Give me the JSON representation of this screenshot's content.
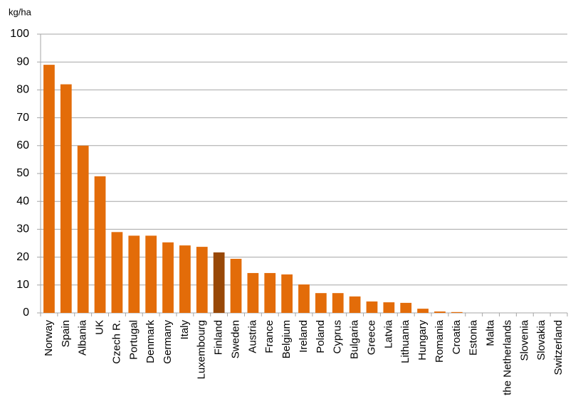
{
  "chart_data": {
    "type": "bar",
    "y_label": "kg/ha",
    "categories": [
      "Norway",
      "Spain",
      "Albania",
      "UK",
      "Czech R.",
      "Portugal",
      "Denmark",
      "Germany",
      "Italy",
      "Luxembourg",
      "Finland",
      "Sweden",
      "Austria",
      "France",
      "Belgium",
      "Ireland",
      "Poland",
      "Cyprus",
      "Bulgaria",
      "Greece",
      "Latvia",
      "Lithuania",
      "Hungary",
      "Romania",
      "Croatia",
      "Estonia",
      "Malta",
      "the Netherlands",
      "Slovenia",
      "Slovakia",
      "Switzerland"
    ],
    "values": [
      89,
      82,
      60,
      49,
      29,
      27.7,
      27.7,
      25.3,
      24.2,
      23.7,
      21.7,
      19.4,
      14.3,
      14.3,
      13.8,
      10.2,
      7.1,
      7.1,
      5.9,
      4.1,
      3.8,
      3.6,
      1.5,
      0.5,
      0.3,
      0,
      0,
      0,
      0,
      0,
      0
    ],
    "colors": [
      "#e36c09",
      "#e36c09",
      "#e36c09",
      "#e36c09",
      "#e36c09",
      "#e36c09",
      "#e36c09",
      "#e36c09",
      "#e36c09",
      "#e36c09",
      "#984807",
      "#e36c09",
      "#e36c09",
      "#e36c09",
      "#e36c09",
      "#e36c09",
      "#e36c09",
      "#e36c09",
      "#e36c09",
      "#e36c09",
      "#e36c09",
      "#e36c09",
      "#e36c09",
      "#e36c09",
      "#e36c09",
      "#e36c09",
      "#e36c09",
      "#e36c09",
      "#e36c09",
      "#e36c09",
      "#e36c09"
    ],
    "ylim": [
      0,
      100
    ],
    "yticks": [
      0,
      10,
      20,
      30,
      40,
      50,
      60,
      70,
      80,
      90,
      100
    ],
    "grid": true
  }
}
